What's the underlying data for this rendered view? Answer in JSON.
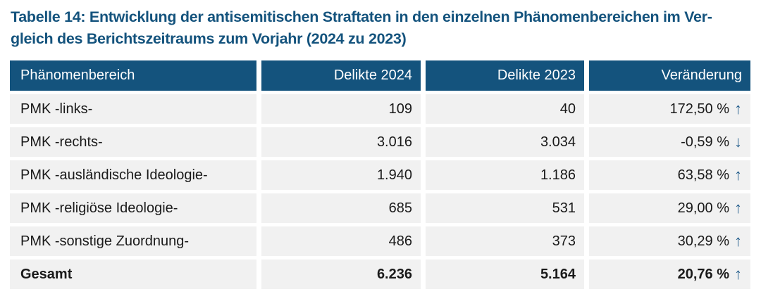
{
  "caption": {
    "lines": [
      "Tabelle 14: Entwicklung der antisemitischen Straftaten in den einzelnen Phänomenbereichen im Ver-",
      "gleich des Berichtszeitraums zum Vorjahr (2024 zu 2023)"
    ],
    "full_text": "Tabelle 14: Entwicklung der antisemitischen Straftaten in den einzelnen Phänomenbereichen im Vergleich des Berichtszeitraums zum Vorjahr (2024 zu 2023)"
  },
  "table": {
    "columns": [
      "Phänomenbereich",
      "Delikte 2024",
      "Delikte 2023",
      "Veränderung"
    ],
    "rows": [
      {
        "name": "PMK -links-",
        "delikte_2024": "109",
        "delikte_2023": "40",
        "veraenderung": "172,50 %",
        "trend": "up",
        "arrow": "↑"
      },
      {
        "name": "PMK -rechts-",
        "delikte_2024": "3.016",
        "delikte_2023": "3.034",
        "veraenderung": "-0,59 %",
        "trend": "down",
        "arrow": "↓"
      },
      {
        "name": "PMK -ausländische Ideologie-",
        "delikte_2024": "1.940",
        "delikte_2023": "1.186",
        "veraenderung": "63,58 %",
        "trend": "up",
        "arrow": "↑"
      },
      {
        "name": "PMK -religiöse Ideologie-",
        "delikte_2024": "685",
        "delikte_2023": "531",
        "veraenderung": "29,00 %",
        "trend": "up",
        "arrow": "↑"
      },
      {
        "name": "PMK -sonstige Zuordnung-",
        "delikte_2024": "486",
        "delikte_2023": "373",
        "veraenderung": "30,29 %",
        "trend": "up",
        "arrow": "↑"
      },
      {
        "name": "Gesamt",
        "delikte_2024": "6.236",
        "delikte_2023": "5.164",
        "veraenderung": "20,76 %",
        "trend": "up",
        "arrow": "↑"
      }
    ]
  },
  "colors": {
    "header_background": "#14537d",
    "header_text": "#ffffff",
    "row_background": "#f1f1f1",
    "body_text": "#1a1a1a",
    "caption_text": "#14537d",
    "trend_arrow": "#1e5a8a",
    "page_background": "#ffffff"
  }
}
